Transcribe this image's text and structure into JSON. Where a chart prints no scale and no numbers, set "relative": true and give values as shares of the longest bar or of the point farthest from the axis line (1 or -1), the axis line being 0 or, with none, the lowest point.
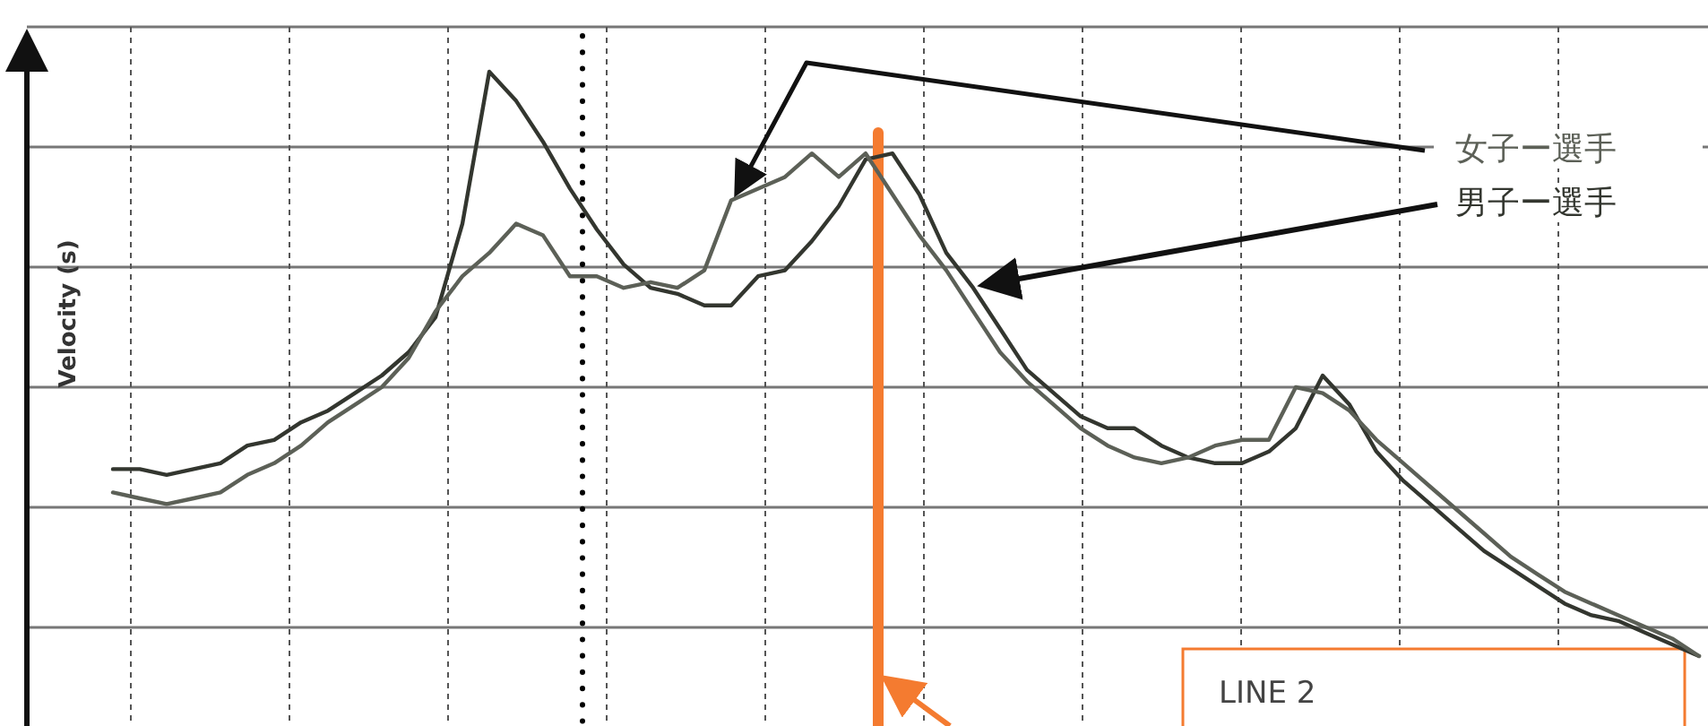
{
  "chart_data": {
    "type": "line",
    "relative": true,
    "ylabel": "Velocity (s)",
    "grid": true,
    "categories": [
      null,
      null,
      null,
      null,
      null,
      null,
      null,
      null,
      null,
      null,
      null,
      null,
      null,
      null,
      null,
      null,
      null,
      null,
      null,
      null,
      null,
      null,
      null,
      null,
      null,
      null,
      null,
      null,
      null,
      null,
      null,
      null,
      null,
      null,
      null,
      null,
      null,
      null,
      null,
      null,
      null,
      null,
      null,
      null,
      null,
      null,
      null,
      null,
      null,
      null,
      null,
      null,
      null,
      null,
      null,
      null,
      null,
      null,
      null,
      null
    ],
    "series": [
      {
        "name": "男子ー選手",
        "color": "#33362f",
        "values": [
          0.32,
          0.32,
          0.31,
          0.32,
          0.33,
          0.36,
          0.37,
          0.4,
          0.42,
          0.45,
          0.48,
          0.52,
          0.58,
          0.74,
          1.0,
          0.95,
          0.88,
          0.8,
          0.73,
          0.67,
          0.63,
          0.62,
          0.6,
          0.6,
          0.65,
          0.66,
          0.71,
          0.77,
          0.85,
          0.86,
          0.79,
          0.69,
          0.63,
          0.56,
          0.49,
          0.45,
          0.41,
          0.39,
          0.39,
          0.36,
          0.34,
          0.33,
          0.33,
          0.35,
          0.39,
          0.48,
          0.43,
          0.35,
          0.3,
          0.26,
          0.22,
          0.18,
          0.15,
          0.12,
          0.09,
          0.07,
          0.06,
          0.04,
          0.02,
          0.0
        ]
      },
      {
        "name": "女子ー選手",
        "color": "#5c6057",
        "values": [
          0.28,
          0.27,
          0.26,
          0.27,
          0.28,
          0.31,
          0.33,
          0.36,
          0.4,
          0.43,
          0.46,
          0.51,
          0.59,
          0.65,
          0.69,
          0.74,
          0.72,
          0.65,
          0.65,
          0.63,
          0.64,
          0.63,
          0.66,
          0.78,
          0.8,
          0.82,
          0.86,
          0.82,
          0.86,
          0.79,
          0.72,
          0.66,
          0.59,
          0.52,
          0.47,
          0.43,
          0.39,
          0.36,
          0.34,
          0.33,
          0.34,
          0.36,
          0.37,
          0.37,
          0.46,
          0.45,
          0.42,
          0.37,
          0.33,
          0.29,
          0.25,
          0.21,
          0.17,
          0.14,
          0.11,
          0.09,
          0.07,
          0.05,
          0.03,
          0.0
        ]
      }
    ],
    "annotations": [
      "LINE 2"
    ]
  }
}
